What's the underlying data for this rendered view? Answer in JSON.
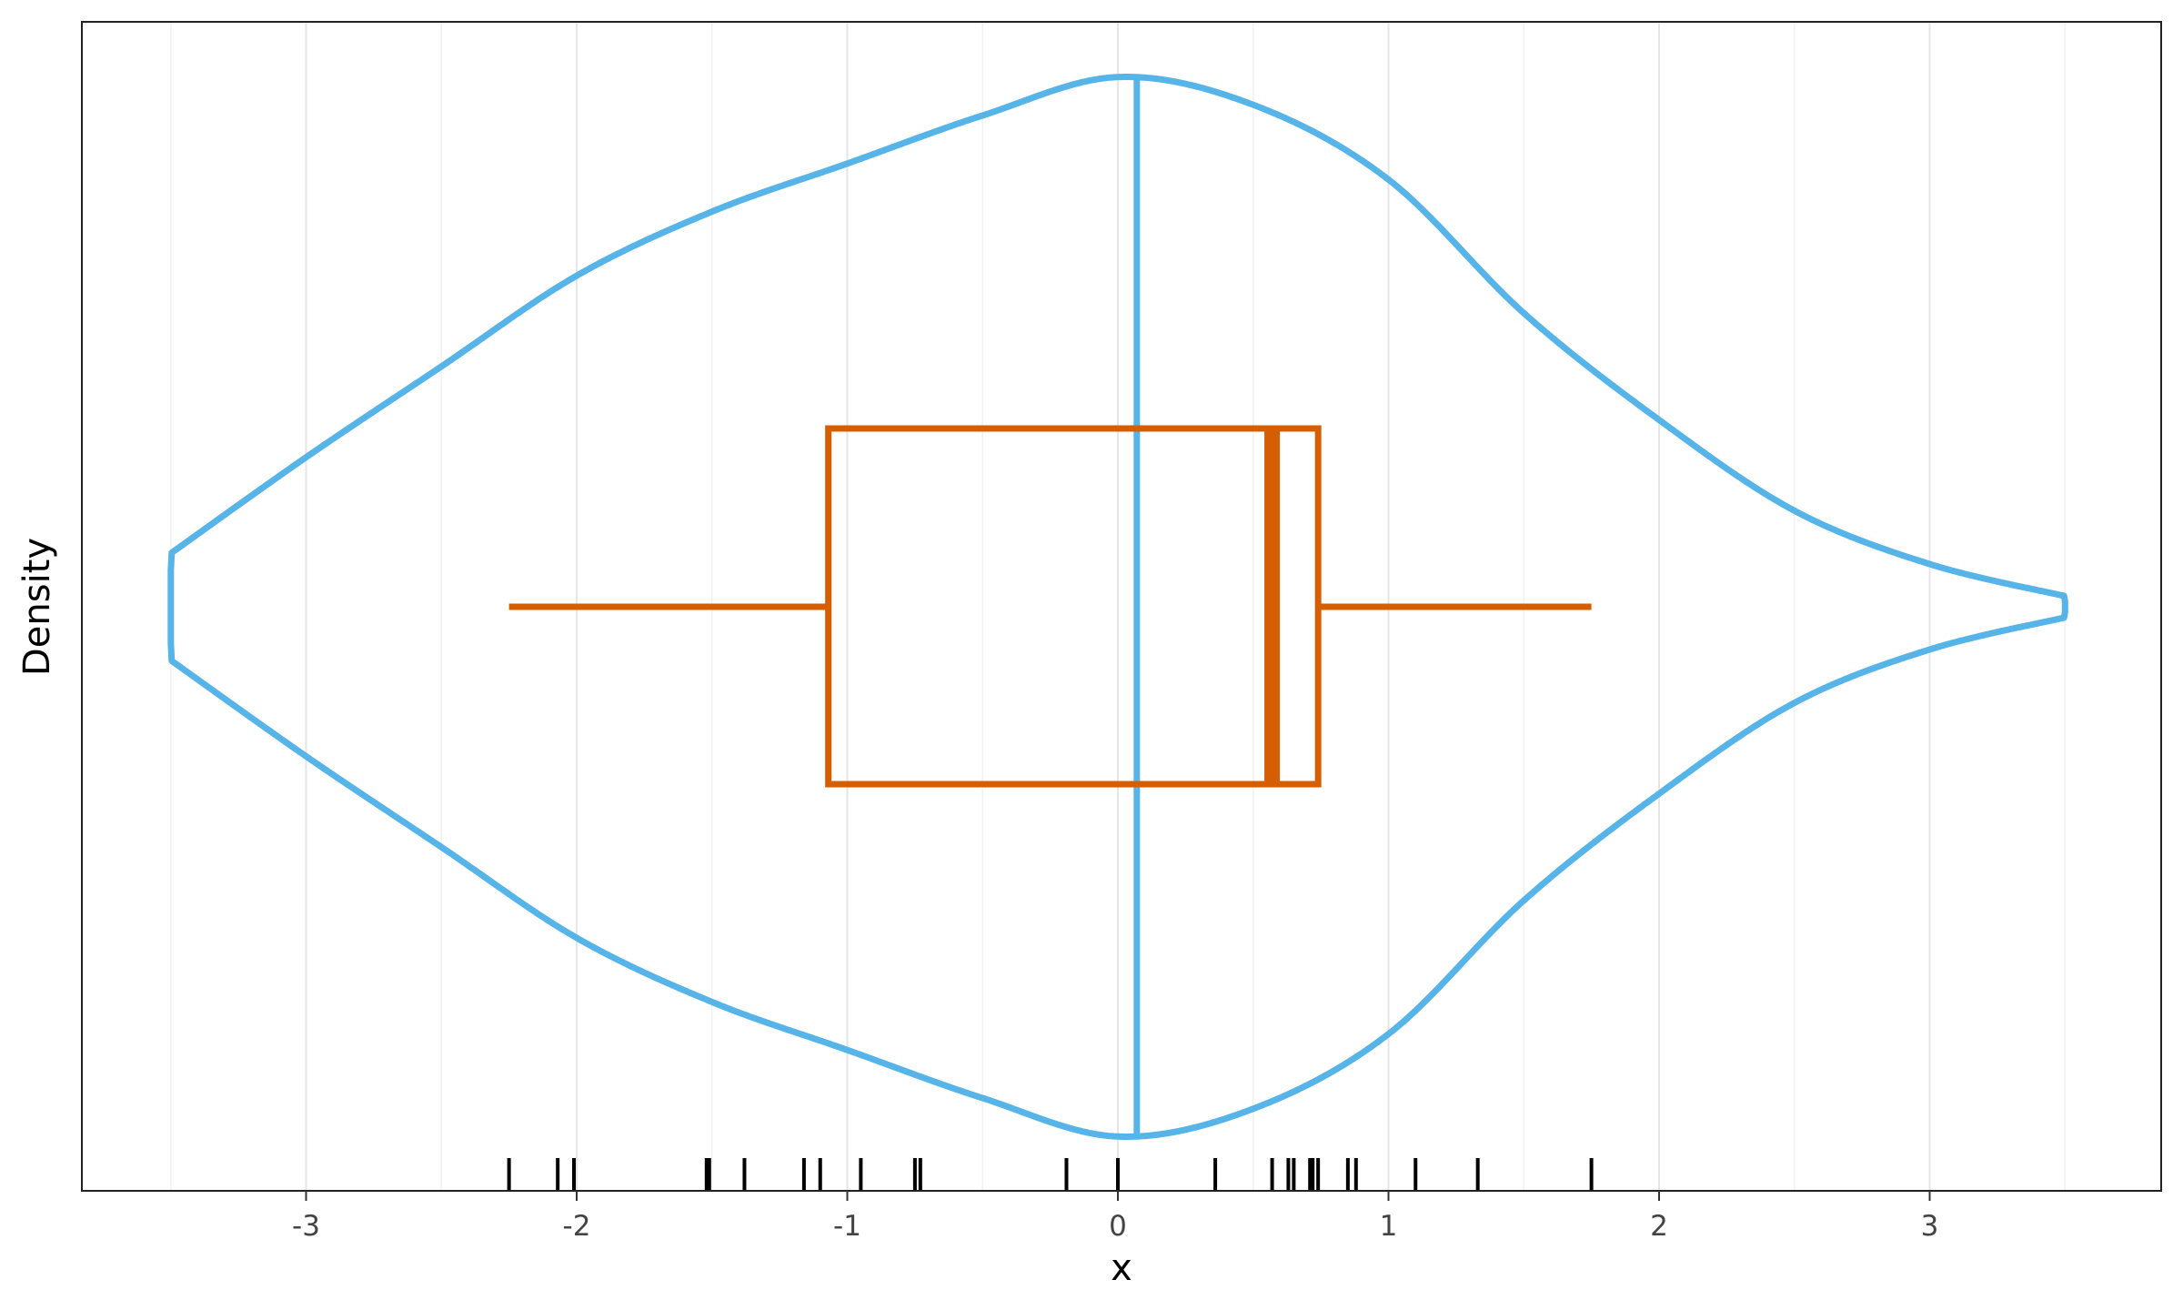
{
  "chart_data": {
    "type": "violin",
    "xlabel": "x",
    "ylabel": "Density",
    "xlim": [
      -3.5,
      3.5
    ],
    "x_ticks": [
      -3,
      -2,
      -1,
      0,
      1,
      2,
      3
    ],
    "x_tick_labels": [
      "-3",
      "-2",
      "-1",
      "0",
      "1",
      "2",
      "3"
    ],
    "minor_gridlines": [
      -3.5,
      -2.5,
      -1.5,
      -0.5,
      0.5,
      1.5,
      2.5,
      3.5
    ],
    "grid": "vertical only",
    "violin": {
      "color": "#56B4E9",
      "density_x": [
        -3.5,
        -3.0,
        -2.5,
        -2.0,
        -1.5,
        -1.0,
        -0.5,
        0.0,
        0.5,
        1.0,
        1.5,
        2.0,
        2.5,
        3.0,
        3.5
      ],
      "density_rel": [
        0.1,
        0.28,
        0.45,
        0.62,
        0.74,
        0.83,
        0.92,
        0.992,
        0.94,
        0.8,
        0.55,
        0.35,
        0.18,
        0.08,
        0.02
      ],
      "density_width_at_min": 0.068,
      "density_width_at_max": 0.01
    },
    "mean_line": {
      "x": 0.07,
      "color": "#56B4E9"
    },
    "boxplot": {
      "color": "#D55E00",
      "whisker_low": -2.25,
      "q1": -1.07,
      "median": 0.57,
      "q3": 0.74,
      "whisker_high": 1.75
    },
    "rug": {
      "color": "#000000",
      "values": [
        -2.25,
        -2.07,
        -2.01,
        -1.52,
        -1.51,
        -1.38,
        -1.16,
        -1.1,
        -0.95,
        -0.75,
        -0.73,
        -0.19,
        0.0,
        0.36,
        0.57,
        0.63,
        0.65,
        0.71,
        0.72,
        0.74,
        0.85,
        0.88,
        1.1,
        1.33,
        1.75
      ]
    }
  }
}
